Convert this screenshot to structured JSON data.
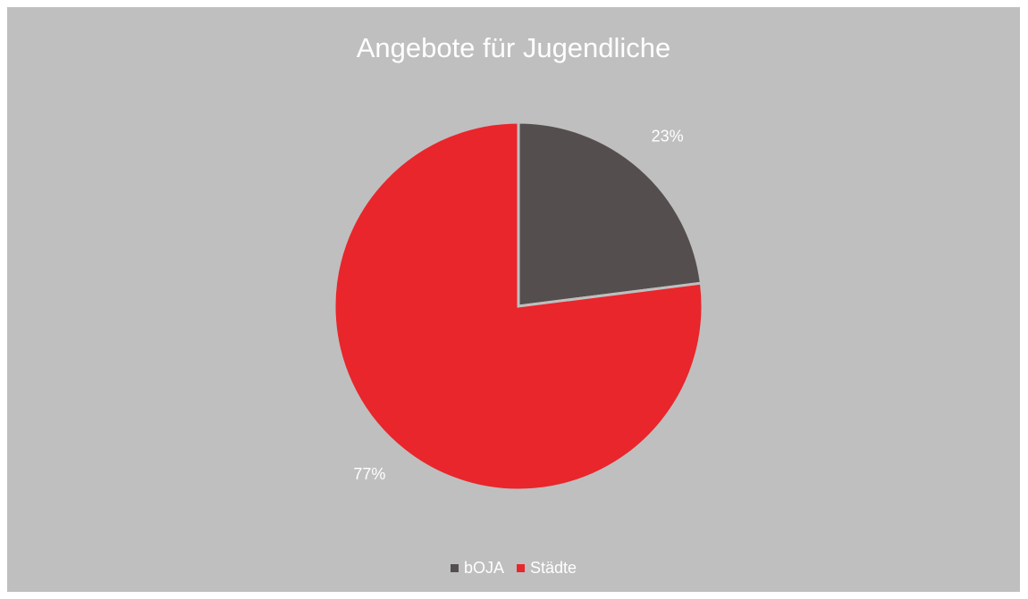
{
  "chart_data": {
    "type": "pie",
    "title": "Angebote für Jugendliche",
    "series": [
      {
        "label": "bOJA",
        "value": 23,
        "display": "23%",
        "color": "#544f4e"
      },
      {
        "label": "Städte",
        "value": 77,
        "display": "77%",
        "color": "#e8262c"
      }
    ],
    "legend_position": "bottom",
    "background": "#bfbfbf"
  }
}
